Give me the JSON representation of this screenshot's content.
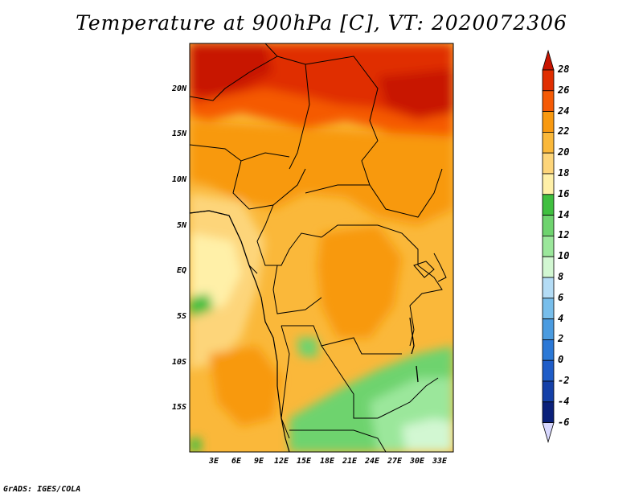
{
  "title": "Temperature at 900hPa [C], VT: 2020072306",
  "footer": "GrADS: IGES/COLA",
  "map": {
    "field": "temperature",
    "units": "C",
    "level": "900hPa",
    "lat_ticks": [
      "20N",
      "15N",
      "10N",
      "5N",
      "EQ",
      "5S",
      "10S",
      "15S"
    ],
    "lon_ticks": [
      "3E",
      "6E",
      "9E",
      "12E",
      "15E",
      "18E",
      "21E",
      "24E",
      "27E",
      "30E",
      "33E"
    ]
  },
  "colorbar": {
    "labels": [
      "28",
      "26",
      "24",
      "22",
      "20",
      "18",
      "16",
      "14",
      "12",
      "10",
      "8",
      "6",
      "4",
      "2",
      "0",
      "-2",
      "-4",
      "-6"
    ],
    "colors": {
      "above_28": "#c81400",
      "c26_28": "#e02d00",
      "c24_26": "#f55a05",
      "c22_24": "#f89910",
      "c20_22": "#fab83a",
      "c18_20": "#fdd57a",
      "c16_18": "#fff0a8",
      "c14_16": "#3fbf3f",
      "c12_14": "#6ed36e",
      "c10_12": "#9be79b",
      "c8_10": "#d2f7d2",
      "c6_8": "#b4dcf5",
      "c4_6": "#78beeb",
      "c2_4": "#4a9be0",
      "c0_2": "#2b78d6",
      "cm2_0": "#1e5cc8",
      "cm4_m2": "#1440a8",
      "cm6_m4": "#0a207a",
      "below_m6": "#d8d8ff"
    }
  }
}
